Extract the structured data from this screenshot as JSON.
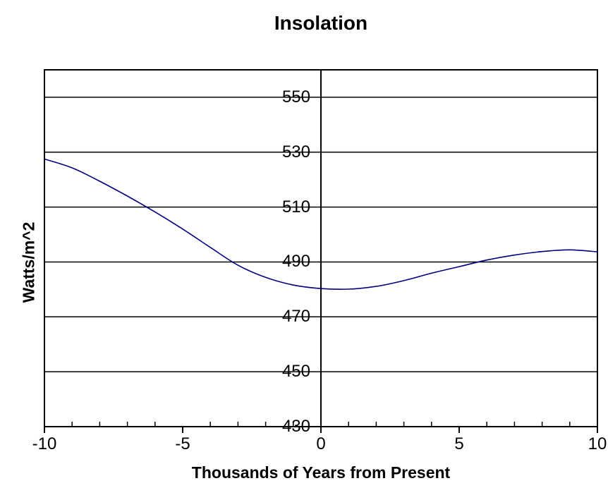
{
  "chart_data": {
    "type": "line",
    "title": "Insolation",
    "xlabel": "Thousands of Years from Present",
    "ylabel": "Watts/m^2",
    "x": [
      -10,
      -9,
      -8,
      -7,
      -6,
      -5,
      -4,
      -3,
      -2,
      -1,
      0,
      1,
      2,
      3,
      4,
      5,
      6,
      7,
      8,
      9,
      10
    ],
    "y": [
      527.5,
      524.3,
      519.4,
      514.0,
      508.2,
      502.0,
      495.3,
      488.8,
      484.4,
      481.6,
      480.3,
      480.1,
      481.1,
      483.2,
      485.9,
      488.3,
      490.7,
      492.5,
      493.8,
      494.4,
      493.7
    ],
    "xlim": [
      -10,
      10
    ],
    "ylim": [
      430,
      560
    ],
    "x_ticks": [
      -10,
      -5,
      0,
      5,
      10
    ],
    "x_tick_labels": [
      "-10",
      "-5",
      "0",
      "5",
      "10"
    ],
    "x_minor_ticks": [
      -9,
      -8,
      -7,
      -6,
      -4,
      -3,
      -2,
      -1,
      1,
      2,
      3,
      4,
      6,
      7,
      8,
      9
    ],
    "y_ticks": [
      430,
      450,
      470,
      490,
      510,
      530,
      550
    ],
    "y_tick_labels": [
      "430",
      "450",
      "470",
      "490",
      "510",
      "530",
      "550"
    ],
    "y_gridlines": [
      450,
      470,
      490,
      510,
      530,
      550
    ],
    "value_axis_x": 0,
    "line_color": "#000080",
    "axis_color": "#000000",
    "grid_color": "#000000",
    "background_color": "#ffffff",
    "legend": "none",
    "grid": "horizontal"
  }
}
